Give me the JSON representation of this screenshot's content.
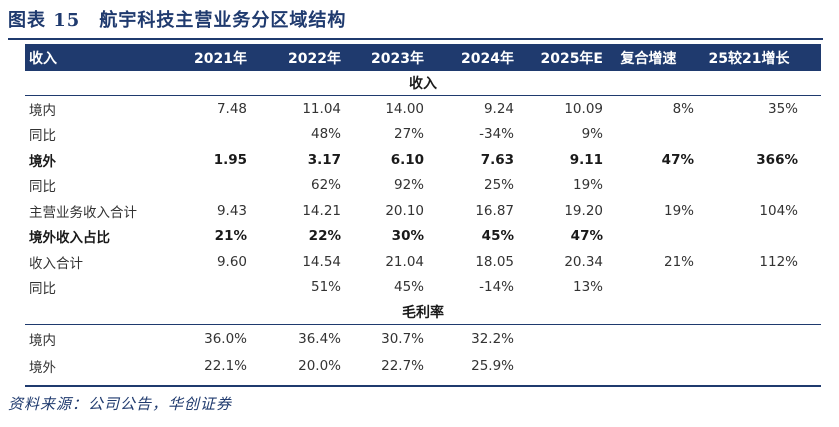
{
  "title": "图表 15　航宇科技主营业务分区域结构",
  "header": [
    "收入",
    "2021年",
    "2022年",
    "2023年",
    "2024年",
    "2025年E",
    "复合增速",
    "25较21增长"
  ],
  "section_revenue": "收入",
  "revenue_rows": [
    {
      "label": "境内",
      "values": [
        "7.48",
        "11.04",
        "14.00",
        "9.24",
        "10.09",
        "8%",
        "35%"
      ],
      "bold": false
    },
    {
      "label": "同比",
      "values": [
        "",
        "48%",
        "27%",
        "-34%",
        "9%",
        "",
        ""
      ],
      "bold": false
    },
    {
      "label": "境外",
      "values": [
        "1.95",
        "3.17",
        "6.10",
        "7.63",
        "9.11",
        "47%",
        "366%"
      ],
      "bold": true
    },
    {
      "label": "同比",
      "values": [
        "",
        "62%",
        "92%",
        "25%",
        "19%",
        "",
        ""
      ],
      "bold": false
    },
    {
      "label": "主营业务收入合计",
      "values": [
        "9.43",
        "14.21",
        "20.10",
        "16.87",
        "19.20",
        "19%",
        "104%"
      ],
      "bold": false
    },
    {
      "label": "境外收入占比",
      "values": [
        "21%",
        "22%",
        "30%",
        "45%",
        "47%",
        "",
        ""
      ],
      "bold": true
    },
    {
      "label": "收入合计",
      "values": [
        "9.60",
        "14.54",
        "21.04",
        "18.05",
        "20.34",
        "21%",
        "112%"
      ],
      "bold": false
    },
    {
      "label": "同比",
      "values": [
        "",
        "51%",
        "45%",
        "-14%",
        "13%",
        "",
        ""
      ],
      "bold": false
    }
  ],
  "section_margin": "毛利率",
  "margin_rows": [
    {
      "label": "境内",
      "values": [
        "36.0%",
        "36.4%",
        "30.7%",
        "32.2%",
        "",
        "",
        ""
      ]
    },
    {
      "label": "境外",
      "values": [
        "22.1%",
        "20.0%",
        "22.7%",
        "25.9%",
        "",
        "",
        ""
      ]
    }
  ],
  "source": "资料来源：公司公告，华创证券"
}
